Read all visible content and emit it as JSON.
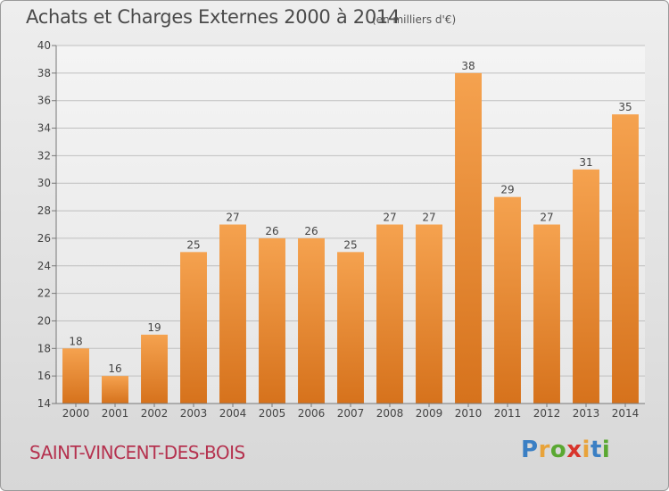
{
  "header": {
    "title": "Achats et Charges Externes 2000 à 2014",
    "subtitle": "(en milliers d'€)"
  },
  "footer": {
    "place_name": "SAINT-VINCENT-DES-BOIS",
    "logo": {
      "letters": [
        "P",
        "r",
        "o",
        "x",
        "i",
        "t",
        "i"
      ],
      "colors": [
        "#3a7fc4",
        "#e8a33a",
        "#5aa832",
        "#d8342c",
        "#e8a33a",
        "#3a7fc4",
        "#5aa832"
      ]
    }
  },
  "colors": {
    "bar_top": "#f5a24f",
    "bar_bottom": "#d6721c",
    "grid": "#bfbfbf",
    "title": "#4a4a4a",
    "place_name": "#b5324f"
  },
  "chart_data": {
    "type": "bar",
    "title": "Achats et Charges Externes 2000 à 2014",
    "subtitle": "(en milliers d'€)",
    "categories": [
      "2000",
      "2001",
      "2002",
      "2003",
      "2004",
      "2005",
      "2006",
      "2007",
      "2008",
      "2009",
      "2010",
      "2011",
      "2012",
      "2013",
      "2014"
    ],
    "values": [
      18,
      16,
      19,
      25,
      27,
      26,
      26,
      25,
      27,
      27,
      38,
      29,
      27,
      31,
      35
    ],
    "data_labels": [
      "18",
      "16",
      "19",
      "25",
      "27",
      "26",
      "26",
      "25",
      "27",
      "27",
      "38",
      "29",
      "27",
      "31",
      "35"
    ],
    "ylim": [
      14,
      40
    ],
    "yticks": [
      "14",
      "16",
      "18",
      "20",
      "22",
      "24",
      "26",
      "28",
      "30",
      "32",
      "34",
      "36",
      "38",
      "40"
    ],
    "grid": true,
    "legend": "none"
  }
}
